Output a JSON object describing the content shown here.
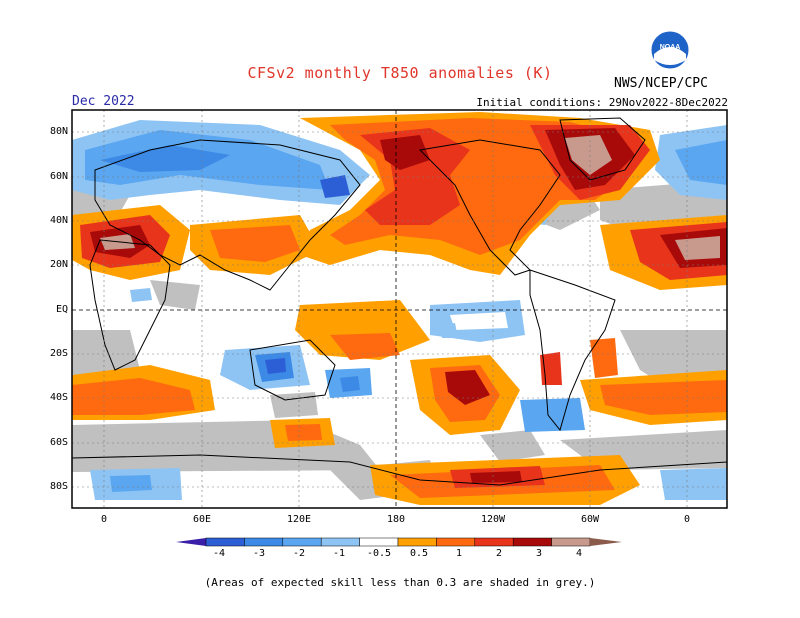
{
  "title": "CFSv2 monthly T850 anomalies (K)",
  "month": "Dec 2022",
  "initial_conditions": "Initial conditions: 29Nov2022-8Dec2022",
  "agency": "NWS/NCEP/CPC",
  "logo_text": "NOAA",
  "lat_labels": [
    "80N",
    "60N",
    "40N",
    "20N",
    "EQ",
    "20S",
    "40S",
    "60S",
    "80S"
  ],
  "lon_labels": [
    "0",
    "60E",
    "120E",
    "180",
    "120W",
    "60W",
    "0"
  ],
  "colorbar": {
    "ticks": [
      "-4",
      "-3",
      "-2",
      "-1",
      "-0.5",
      "0.5",
      "1",
      "2",
      "3",
      "4"
    ],
    "colors": [
      "#3a1ea8",
      "#2c5fd6",
      "#3c8ae6",
      "#5aa6f0",
      "#8ec4f4",
      "#ffffff",
      "#ffa000",
      "#ff6a10",
      "#e8341a",
      "#a80a0a",
      "#c89a8e",
      "#8a5a4a"
    ]
  },
  "footnote": "(Areas of expected skill less than 0.3 are shaded in grey.)"
}
